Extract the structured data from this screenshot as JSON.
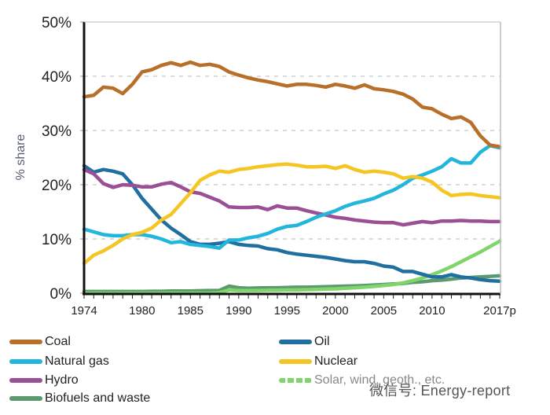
{
  "chart_data": {
    "type": "line",
    "title": "",
    "xlabel": "",
    "ylabel": "% share",
    "x": [
      1974,
      1975,
      1976,
      1977,
      1978,
      1979,
      1980,
      1981,
      1982,
      1983,
      1984,
      1985,
      1986,
      1987,
      1988,
      1989,
      1990,
      1991,
      1992,
      1993,
      1994,
      1995,
      1996,
      1997,
      1998,
      1999,
      2000,
      2001,
      2002,
      2003,
      2004,
      2005,
      2006,
      2007,
      2008,
      2009,
      2010,
      2011,
      2012,
      2013,
      2014,
      2015,
      2016,
      2017
    ],
    "x_tick_labels": [
      {
        "x": 1974,
        "label": "1974"
      },
      {
        "x": 1980,
        "label": "1980"
      },
      {
        "x": 1985,
        "label": "1985"
      },
      {
        "x": 1990,
        "label": "1990"
      },
      {
        "x": 1995,
        "label": "1995"
      },
      {
        "x": 2000,
        "label": "2000"
      },
      {
        "x": 2005,
        "label": "2005"
      },
      {
        "x": 2010,
        "label": "2010"
      },
      {
        "x": 2017,
        "label": "2017p"
      }
    ],
    "y_ticks": [
      0,
      10,
      20,
      30,
      40,
      50
    ],
    "y_tick_labels": [
      "0%",
      "10%",
      "20%",
      "30%",
      "40%",
      "50%"
    ],
    "xlim": [
      1974,
      2017
    ],
    "ylim": [
      0,
      50
    ],
    "grid": "horizontal-dashed",
    "legend_position": "bottom",
    "series": [
      {
        "name": "Coal",
        "color": "#b86f2a",
        "values": [
          36.2,
          36.5,
          38.0,
          37.8,
          36.8,
          38.5,
          40.8,
          41.2,
          42.0,
          42.5,
          42.0,
          42.6,
          42.0,
          42.2,
          41.8,
          40.8,
          40.2,
          39.7,
          39.3,
          39.0,
          38.6,
          38.2,
          38.5,
          38.5,
          38.3,
          38.0,
          38.5,
          38.2,
          37.8,
          38.4,
          37.7,
          37.5,
          37.2,
          36.7,
          35.8,
          34.3,
          34.0,
          33.0,
          32.2,
          32.5,
          31.5,
          29.0,
          27.3,
          27.0
        ]
      },
      {
        "name": "Oil",
        "color": "#1f6fa0",
        "values": [
          23.5,
          22.3,
          22.8,
          22.5,
          22.0,
          20.0,
          17.5,
          15.5,
          13.5,
          12.0,
          10.8,
          9.5,
          9.0,
          9.0,
          9.2,
          9.5,
          9.0,
          8.8,
          8.7,
          8.2,
          8.0,
          7.5,
          7.2,
          7.0,
          6.8,
          6.6,
          6.3,
          6.0,
          5.8,
          5.8,
          5.5,
          5.0,
          4.8,
          4.0,
          4.0,
          3.5,
          3.0,
          3.0,
          3.4,
          3.0,
          2.8,
          2.5,
          2.3,
          2.2
        ]
      },
      {
        "name": "Natural gas",
        "color": "#22b6dd",
        "values": [
          11.8,
          11.3,
          10.8,
          10.6,
          10.6,
          10.8,
          10.8,
          10.5,
          10.0,
          9.3,
          9.5,
          9.0,
          8.8,
          8.6,
          8.3,
          9.8,
          9.8,
          10.2,
          10.5,
          11.0,
          11.8,
          12.3,
          12.5,
          13.2,
          14.0,
          14.6,
          15.2,
          16.0,
          16.6,
          17.0,
          17.5,
          18.3,
          19.0,
          20.0,
          21.2,
          21.8,
          22.5,
          23.3,
          24.8,
          24.0,
          24.0,
          26.0,
          27.2,
          26.8
        ]
      },
      {
        "name": "Nuclear",
        "color": "#f5c523",
        "values": [
          5.5,
          7.0,
          7.8,
          8.8,
          10.0,
          10.8,
          11.2,
          12.0,
          13.5,
          14.5,
          16.5,
          18.5,
          20.8,
          21.8,
          22.5,
          22.3,
          22.8,
          23.0,
          23.3,
          23.5,
          23.7,
          23.8,
          23.6,
          23.3,
          23.3,
          23.4,
          23.0,
          23.5,
          22.8,
          22.3,
          22.5,
          22.3,
          22.0,
          21.2,
          21.5,
          21.2,
          20.5,
          19.0,
          18.0,
          18.2,
          18.3,
          18.0,
          17.8,
          17.6
        ]
      },
      {
        "name": "Hydro",
        "color": "#9a4f96",
        "values": [
          22.8,
          22.0,
          20.2,
          19.5,
          20.0,
          19.9,
          19.6,
          19.6,
          20.1,
          20.4,
          19.6,
          18.7,
          18.4,
          17.7,
          17.0,
          15.9,
          15.8,
          15.8,
          15.9,
          15.4,
          16.1,
          15.7,
          15.7,
          15.2,
          14.8,
          14.4,
          14.0,
          13.8,
          13.5,
          13.3,
          13.1,
          13.0,
          13.0,
          12.6,
          12.9,
          13.2,
          13.0,
          13.3,
          13.3,
          13.4,
          13.3,
          13.3,
          13.2,
          13.2
        ]
      },
      {
        "name": "Biofuels and waste",
        "color": "#5a9a6e",
        "values": [
          0.3,
          0.3,
          0.3,
          0.3,
          0.3,
          0.3,
          0.3,
          0.35,
          0.35,
          0.4,
          0.4,
          0.4,
          0.45,
          0.5,
          0.5,
          1.3,
          1.0,
          0.9,
          0.95,
          1.0,
          1.0,
          1.05,
          1.1,
          1.1,
          1.15,
          1.2,
          1.25,
          1.3,
          1.35,
          1.4,
          1.5,
          1.6,
          1.7,
          1.8,
          2.0,
          2.1,
          2.3,
          2.4,
          2.6,
          2.8,
          2.9,
          3.0,
          3.1,
          3.2
        ]
      },
      {
        "name": "Solar, wind, geoth., etc.",
        "color": "#7fd46a",
        "dashed_legend": true,
        "values": [
          0.0,
          0.0,
          0.0,
          0.0,
          0.0,
          0.0,
          0.0,
          0.0,
          0.0,
          0.0,
          0.0,
          0.0,
          0.0,
          0.0,
          0.1,
          0.6,
          0.5,
          0.5,
          0.5,
          0.55,
          0.55,
          0.6,
          0.6,
          0.65,
          0.7,
          0.75,
          0.8,
          0.9,
          1.0,
          1.1,
          1.25,
          1.4,
          1.6,
          1.9,
          2.3,
          2.8,
          3.4,
          4.1,
          4.9,
          5.8,
          6.7,
          7.6,
          8.6,
          9.6
        ]
      }
    ]
  },
  "legend": [
    {
      "label": "Coal",
      "color": "#b86f2a"
    },
    {
      "label": "Oil",
      "color": "#1f6fa0"
    },
    {
      "label": "Natural gas",
      "color": "#22b6dd"
    },
    {
      "label": "Nuclear",
      "color": "#f5c523"
    },
    {
      "label": "Hydro",
      "color": "#9a4f96"
    },
    {
      "label": "Solar, wind, geoth., etc.",
      "color": "#7fd46a"
    },
    {
      "label": "Biofuels and waste",
      "color": "#5a9a6e"
    }
  ],
  "watermark": "微信号: Energy-report"
}
